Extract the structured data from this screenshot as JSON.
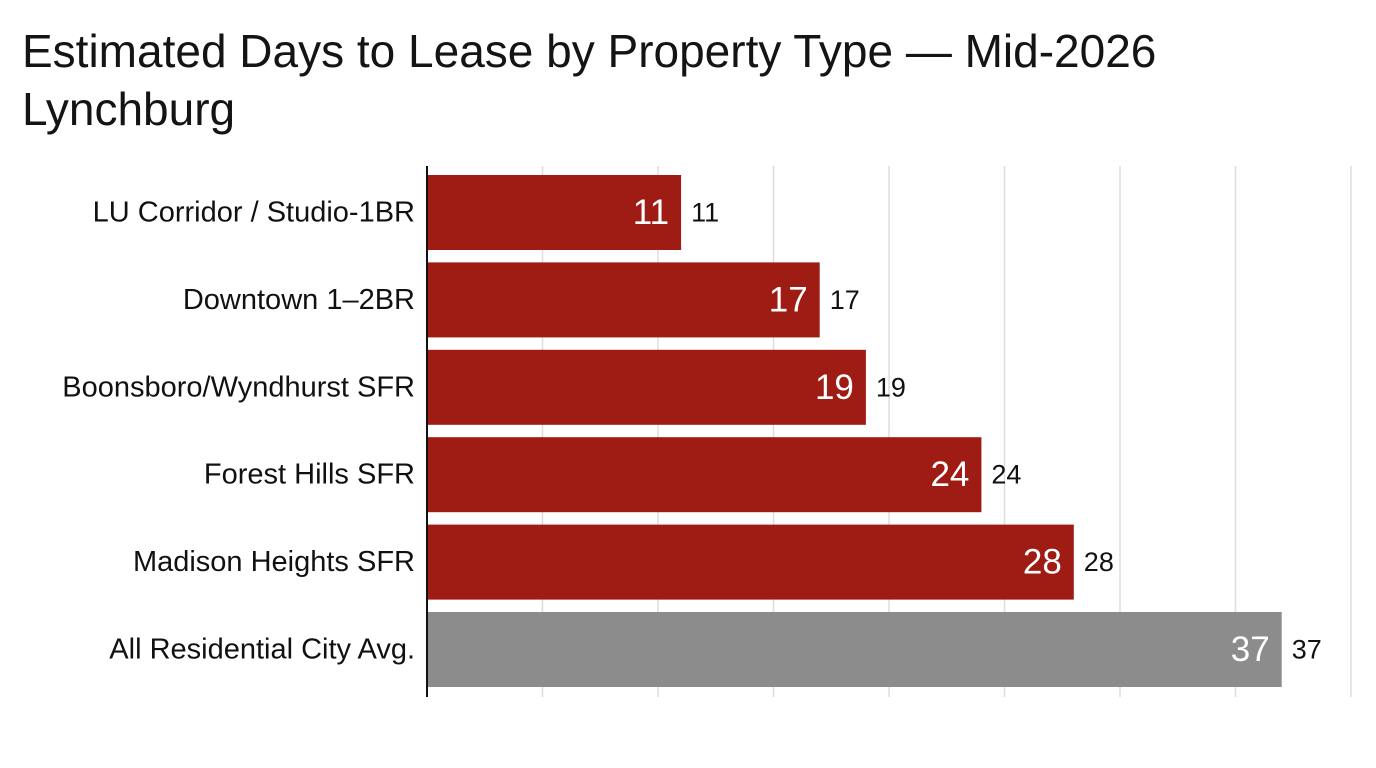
{
  "chart_data": {
    "type": "bar",
    "orientation": "horizontal",
    "title": "Estimated Days to Lease by Property Type — Mid-2026 Lynchburg",
    "xlabel": "",
    "ylabel": "",
    "categories": [
      "LU Corridor / Studio-1BR",
      "Downtown 1–2BR",
      "Boonsboro/Wyndhurst SFR",
      "Forest Hills SFR",
      "Madison Heights SFR",
      "All Residential City Avg."
    ],
    "values": [
      11,
      17,
      19,
      24,
      28,
      37
    ],
    "value_labels": [
      "11",
      "17",
      "19",
      "24",
      "28",
      "37"
    ],
    "bar_colors": [
      "#9e1c14",
      "#9e1c14",
      "#9e1c14",
      "#9e1c14",
      "#9e1c14",
      "#8c8c8c"
    ],
    "xlim": [
      0,
      40
    ],
    "grid_step": 5,
    "grid": true,
    "tick_labels_shown": false,
    "legend": "none"
  },
  "colors": {
    "highlight": "#9e1c14",
    "benchmark": "#8c8c8c",
    "grid": "#dddddd",
    "axis": "#111111"
  }
}
